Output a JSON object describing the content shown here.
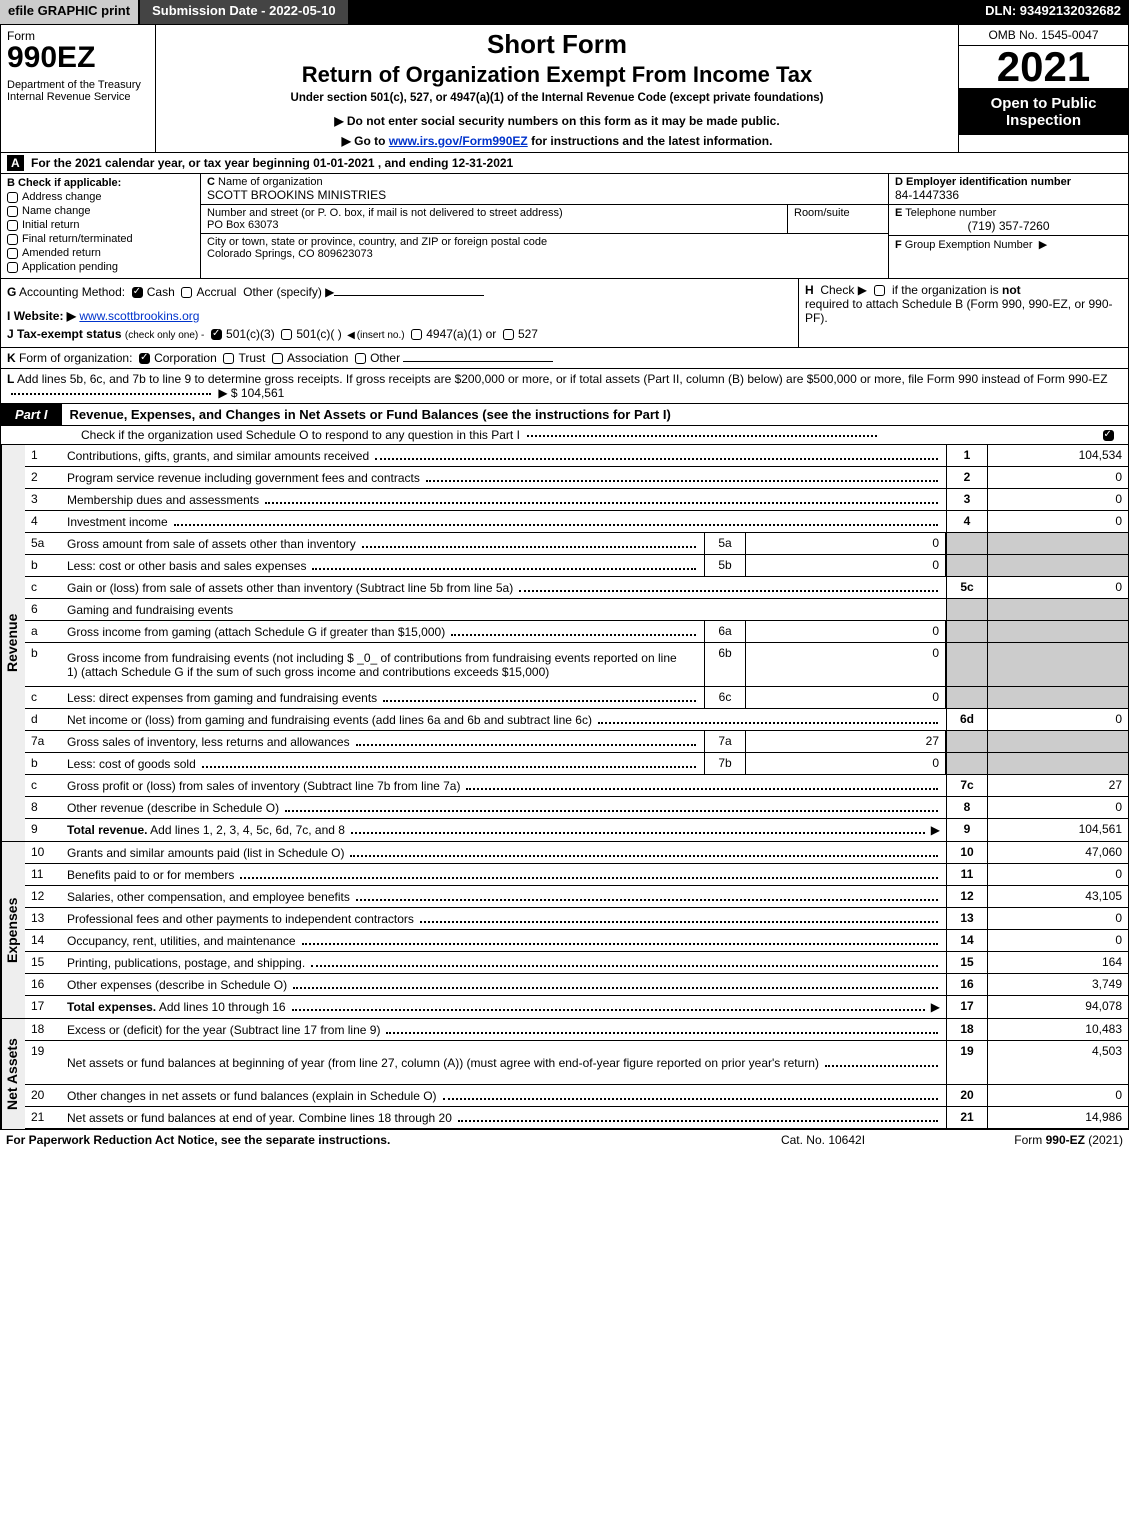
{
  "topbar": {
    "efile": "efile GRAPHIC print",
    "submission": "Submission Date - 2022-05-10",
    "dln": "DLN: 93492132032682"
  },
  "header": {
    "form_word": "Form",
    "form_no": "990EZ",
    "dept": "Department of the Treasury\nInternal Revenue Service",
    "title1": "Short Form",
    "title2": "Return of Organization Exempt From Income Tax",
    "subtitle": "Under section 501(c), 527, or 4947(a)(1) of the Internal Revenue Code (except private foundations)",
    "note1": "▶ Do not enter social security numbers on this form as it may be made public.",
    "note2_pre": "▶ Go to ",
    "note2_link": "www.irs.gov/Form990EZ",
    "note2_post": " for instructions and the latest information.",
    "omb": "OMB No. 1545-0047",
    "year": "2021",
    "open": "Open to Public Inspection"
  },
  "lineA": {
    "lead": "A",
    "text": "For the 2021 calendar year, or tax year beginning 01-01-2021 , and ending 12-31-2021"
  },
  "colB": {
    "lead": "B",
    "label": "Check if applicable:",
    "opts": [
      "Address change",
      "Name change",
      "Initial return",
      "Final return/terminated",
      "Amended return",
      "Application pending"
    ]
  },
  "colC": {
    "name_lead": "C",
    "name_label": "Name of organization",
    "name_val": "SCOTT BROOKINS MINISTRIES",
    "street_label": "Number and street (or P. O. box, if mail is not delivered to street address)",
    "street_val": "PO Box 63073",
    "room_label": "Room/suite",
    "city_label": "City or town, state or province, country, and ZIP or foreign postal code",
    "city_val": "Colorado Springs, CO  809623073"
  },
  "colD": {
    "ein_lead": "D",
    "ein_label": "Employer identification number",
    "ein_val": "84-1447336",
    "tel_lead": "E",
    "tel_label": "Telephone number",
    "tel_val": "(719) 357-7260",
    "grp_lead": "F",
    "grp_label": "Group Exemption Number",
    "grp_arrow": "▶"
  },
  "lineG": {
    "lead": "G",
    "label": "Accounting Method:",
    "cash": "Cash",
    "accrual": "Accrual",
    "other": "Other (specify) ▶"
  },
  "lineH": {
    "lead": "H",
    "text1": "Check ▶",
    "text2": "if the organization is",
    "text3": "not",
    "text4": "required to attach Schedule B (Form 990, 990-EZ, or 990-PF)."
  },
  "lineI": {
    "lead": "I",
    "label": "Website: ▶",
    "val": "www.scottbrookins.org"
  },
  "lineJ": {
    "lead": "J",
    "label": "Tax-exempt status",
    "note": "(check only one) -",
    "o1": "501(c)(3)",
    "o2": "501(c)(  )",
    "insert": "(insert no.)",
    "o3": "4947(a)(1) or",
    "o4": "527"
  },
  "lineK": {
    "lead": "K",
    "label": "Form of organization:",
    "o1": "Corporation",
    "o2": "Trust",
    "o3": "Association",
    "o4": "Other"
  },
  "lineL": {
    "lead": "L",
    "text": "Add lines 5b, 6c, and 7b to line 9 to determine gross receipts. If gross receipts are $200,000 or more, or if total assets (Part II, column (B) below) are $500,000 or more, file Form 990 instead of Form 990-EZ",
    "arrow": "▶",
    "amount": "$ 104,561"
  },
  "part1": {
    "tab": "Part I",
    "title": "Revenue, Expenses, and Changes in Net Assets or Fund Balances (see the instructions for Part I)",
    "note": "Check if the organization used Schedule O to respond to any question in this Part I",
    "check": true
  },
  "revenue": {
    "label": "Revenue",
    "rows": [
      {
        "n": "1",
        "d": "Contributions, gifts, grants, and similar amounts received",
        "rn": "1",
        "rv": "104,534"
      },
      {
        "n": "2",
        "d": "Program service revenue including government fees and contracts",
        "rn": "2",
        "rv": "0"
      },
      {
        "n": "3",
        "d": "Membership dues and assessments",
        "rn": "3",
        "rv": "0"
      },
      {
        "n": "4",
        "d": "Investment income",
        "rn": "4",
        "rv": "0"
      },
      {
        "n": "5a",
        "d": "Gross amount from sale of assets other than inventory",
        "mn": "5a",
        "mv": "0",
        "shade": true
      },
      {
        "n": "b",
        "d": "Less: cost or other basis and sales expenses",
        "mn": "5b",
        "mv": "0",
        "shade": true
      },
      {
        "n": "c",
        "d": "Gain or (loss) from sale of assets other than inventory (Subtract line 5b from line 5a)",
        "rn": "5c",
        "rv": "0"
      },
      {
        "n": "6",
        "d": "Gaming and fundraising events",
        "shade": true,
        "noline": true
      },
      {
        "n": "a",
        "d": "Gross income from gaming (attach Schedule G if greater than $15,000)",
        "mn": "6a",
        "mv": "0",
        "shade": true
      },
      {
        "n": "b",
        "d": "Gross income from fundraising events (not including $ _0_ of contributions from fundraising events reported on line 1) (attach Schedule G if the sum of such gross income and contributions exceeds $15,000)",
        "mn": "6b",
        "mv": "0",
        "shade": true,
        "tall": true
      },
      {
        "n": "c",
        "d": "Less: direct expenses from gaming and fundraising events",
        "mn": "6c",
        "mv": "0",
        "shade": true
      },
      {
        "n": "d",
        "d": "Net income or (loss) from gaming and fundraising events (add lines 6a and 6b and subtract line 6c)",
        "rn": "6d",
        "rv": "0"
      },
      {
        "n": "7a",
        "d": "Gross sales of inventory, less returns and allowances",
        "mn": "7a",
        "mv": "27",
        "shade": true
      },
      {
        "n": "b",
        "d": "Less: cost of goods sold",
        "mn": "7b",
        "mv": "0",
        "shade": true
      },
      {
        "n": "c",
        "d": "Gross profit or (loss) from sales of inventory (Subtract line 7b from line 7a)",
        "rn": "7c",
        "rv": "27"
      },
      {
        "n": "8",
        "d": "Other revenue (describe in Schedule O)",
        "rn": "8",
        "rv": "0"
      },
      {
        "n": "9",
        "d": "Total revenue. Add lines 1, 2, 3, 4, 5c, 6d, 7c, and 8",
        "rn": "9",
        "rv": "104,561",
        "bold": true,
        "arrow": true
      }
    ]
  },
  "expenses": {
    "label": "Expenses",
    "rows": [
      {
        "n": "10",
        "d": "Grants and similar amounts paid (list in Schedule O)",
        "rn": "10",
        "rv": "47,060"
      },
      {
        "n": "11",
        "d": "Benefits paid to or for members",
        "rn": "11",
        "rv": "0"
      },
      {
        "n": "12",
        "d": "Salaries, other compensation, and employee benefits",
        "rn": "12",
        "rv": "43,105"
      },
      {
        "n": "13",
        "d": "Professional fees and other payments to independent contractors",
        "rn": "13",
        "rv": "0"
      },
      {
        "n": "14",
        "d": "Occupancy, rent, utilities, and maintenance",
        "rn": "14",
        "rv": "0"
      },
      {
        "n": "15",
        "d": "Printing, publications, postage, and shipping.",
        "rn": "15",
        "rv": "164"
      },
      {
        "n": "16",
        "d": "Other expenses (describe in Schedule O)",
        "rn": "16",
        "rv": "3,749"
      },
      {
        "n": "17",
        "d": "Total expenses. Add lines 10 through 16",
        "rn": "17",
        "rv": "94,078",
        "bold": true,
        "arrow": true
      }
    ]
  },
  "netassets": {
    "label": "Net Assets",
    "rows": [
      {
        "n": "18",
        "d": "Excess or (deficit) for the year (Subtract line 17 from line 9)",
        "rn": "18",
        "rv": "10,483"
      },
      {
        "n": "19",
        "d": "Net assets or fund balances at beginning of year (from line 27, column (A)) (must agree with end-of-year figure reported on prior year's return)",
        "rn": "19",
        "rv": "4,503",
        "tall": true
      },
      {
        "n": "20",
        "d": "Other changes in net assets or fund balances (explain in Schedule O)",
        "rn": "20",
        "rv": "0"
      },
      {
        "n": "21",
        "d": "Net assets or fund balances at end of year. Combine lines 18 through 20",
        "rn": "21",
        "rv": "14,986"
      }
    ]
  },
  "footer": {
    "left": "For Paperwork Reduction Act Notice, see the separate instructions.",
    "mid": "Cat. No. 10642I",
    "right_pre": "Form ",
    "right_form": "990-EZ",
    "right_post": " (2021)"
  },
  "colors": {
    "black": "#000000",
    "white": "#ffffff",
    "shade": "#cccccc",
    "darkbtn": "#444444",
    "link": "#0033cc"
  }
}
